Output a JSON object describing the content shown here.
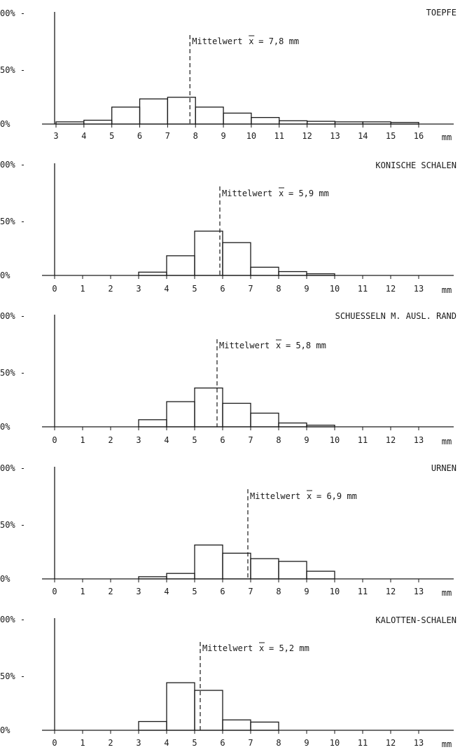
{
  "chart_data": [
    {
      "type": "bar",
      "title": "TOEPFE",
      "unit": "mm",
      "y_ticks": [
        "00% -",
        "50% -",
        "0%"
      ],
      "x_ticks": [
        "3",
        "4",
        "5",
        "6",
        "7",
        "8",
        "9",
        "10",
        "11",
        "12",
        "13",
        "14",
        "15",
        "16"
      ],
      "bins": [
        [
          3,
          4
        ],
        [
          4,
          5
        ],
        [
          5,
          6
        ],
        [
          6,
          7
        ],
        [
          7,
          8
        ],
        [
          8,
          9
        ],
        [
          9,
          10
        ],
        [
          10,
          11
        ],
        [
          11,
          12
        ],
        [
          12,
          13
        ],
        [
          13,
          14
        ],
        [
          14,
          15
        ],
        [
          15,
          16
        ]
      ],
      "values": [
        2,
        3.5,
        15.5,
        23,
        24.5,
        15.5,
        10,
        6,
        3,
        2.5,
        2,
        2,
        1.5
      ],
      "ylim": [
        0,
        100
      ],
      "mean": 7.8,
      "mean_label": "Mittelwert",
      "mean_value_text": "= 7,8 mm"
    },
    {
      "type": "bar",
      "title": "KONISCHE SCHALEN",
      "unit": "mm",
      "y_ticks": [
        "00% -",
        "50% -",
        "0%"
      ],
      "x_ticks": [
        "0",
        "1",
        "2",
        "3",
        "4",
        "5",
        "6",
        "7",
        "8",
        "9",
        "10",
        "11",
        "12",
        "13"
      ],
      "bins": [
        [
          0,
          1
        ],
        [
          1,
          2
        ],
        [
          2,
          3
        ],
        [
          3,
          4
        ],
        [
          4,
          5
        ],
        [
          5,
          6
        ],
        [
          6,
          7
        ],
        [
          7,
          8
        ],
        [
          8,
          9
        ],
        [
          9,
          10
        ]
      ],
      "values": [
        0,
        0,
        0,
        3,
        18,
        40.5,
        30,
        7.5,
        3.5,
        1.5
      ],
      "ylim": [
        0,
        100
      ],
      "mean": 5.9,
      "mean_label": "Mittelwert",
      "mean_value_text": "= 5,9 mm"
    },
    {
      "type": "bar",
      "title": "SCHUESSELN M. AUSL. RAND",
      "unit": "mm",
      "y_ticks": [
        "00% -",
        "50% -",
        "0%"
      ],
      "x_ticks": [
        "0",
        "1",
        "2",
        "3",
        "4",
        "5",
        "6",
        "7",
        "8",
        "9",
        "10",
        "11",
        "12",
        "13"
      ],
      "bins": [
        [
          0,
          1
        ],
        [
          1,
          2
        ],
        [
          2,
          3
        ],
        [
          3,
          4
        ],
        [
          4,
          5
        ],
        [
          5,
          6
        ],
        [
          6,
          7
        ],
        [
          7,
          8
        ],
        [
          8,
          9
        ],
        [
          9,
          10
        ]
      ],
      "values": [
        0,
        0,
        0,
        6.5,
        23,
        35.5,
        21.5,
        12.5,
        3.5,
        1.5
      ],
      "ylim": [
        0,
        100
      ],
      "mean": 5.8,
      "mean_label": "Mittelwert",
      "mean_value_text": "= 5,8 mm"
    },
    {
      "type": "bar",
      "title": "URNEN",
      "unit": "mm",
      "y_ticks": [
        "00% -",
        "50% -",
        "0%"
      ],
      "x_ticks": [
        "0",
        "1",
        "2",
        "3",
        "4",
        "5",
        "6",
        "7",
        "8",
        "9",
        "10",
        "11",
        "12",
        "13"
      ],
      "bins": [
        [
          0,
          1
        ],
        [
          1,
          2
        ],
        [
          2,
          3
        ],
        [
          3,
          4
        ],
        [
          4,
          5
        ],
        [
          5,
          6
        ],
        [
          6,
          7
        ],
        [
          7,
          8
        ],
        [
          8,
          9
        ],
        [
          9,
          10
        ]
      ],
      "values": [
        0,
        0,
        0,
        2,
        5,
        31,
        23.5,
        18.5,
        16,
        7
      ],
      "ylim": [
        0,
        100
      ],
      "mean": 6.9,
      "mean_label": "Mittelwert",
      "mean_value_text": "= 6,9 mm"
    },
    {
      "type": "bar",
      "title": "KALOTTEN-SCHALEN",
      "unit": "mm",
      "y_ticks": [
        "00% -",
        "50% -",
        "0%"
      ],
      "x_ticks": [
        "0",
        "1",
        "2",
        "3",
        "4",
        "5",
        "6",
        "7",
        "8",
        "9",
        "10",
        "11",
        "12",
        "13"
      ],
      "bins": [
        [
          0,
          1
        ],
        [
          1,
          2
        ],
        [
          2,
          3
        ],
        [
          3,
          4
        ],
        [
          4,
          5
        ],
        [
          5,
          6
        ],
        [
          6,
          7
        ],
        [
          7,
          8
        ]
      ],
      "values": [
        0,
        0,
        0,
        8,
        43.5,
        36.5,
        9.5,
        7.5
      ],
      "ylim": [
        0,
        100
      ],
      "mean": 5.2,
      "mean_label": "Mittelwert",
      "mean_value_text": "= 5,2 mm"
    }
  ],
  "colors": {
    "ink": "#1a1a1a",
    "background": "#ffffff"
  }
}
